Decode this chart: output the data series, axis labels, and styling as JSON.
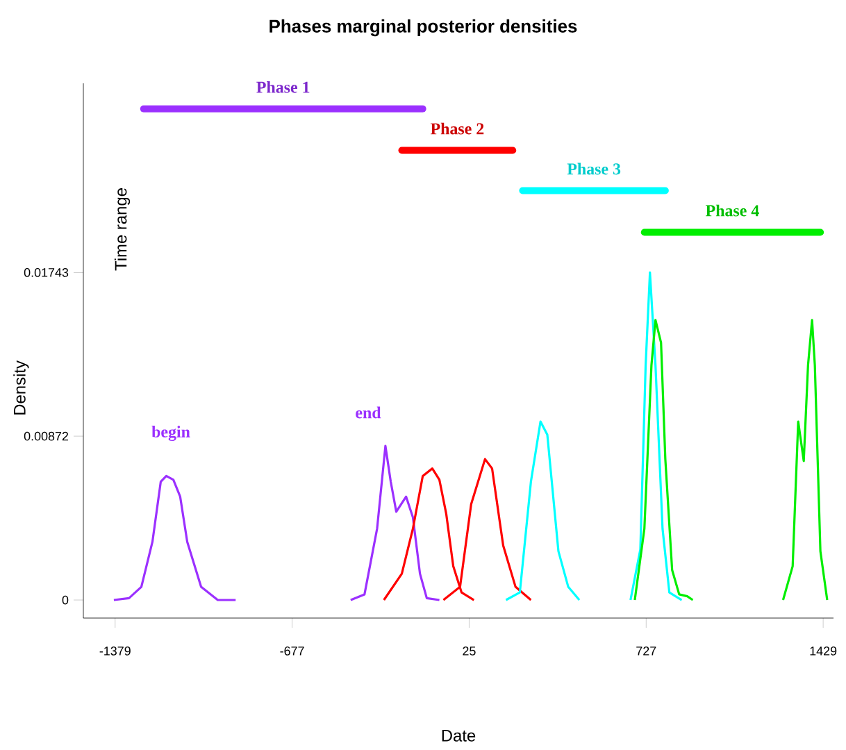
{
  "chart_data": {
    "type": "line",
    "title": "Phases marginal posterior densities",
    "xlabel": "Date",
    "ylabel": "Density",
    "xlim": [
      -1505,
      1470
    ],
    "ylim": [
      -0.00096,
      0.0275
    ],
    "xticks": [
      -1379,
      -677,
      25,
      727,
      1429
    ],
    "yticks": [
      0,
      0.00872,
      0.01743
    ],
    "annotations": [
      "Time range",
      "begin",
      "end"
    ],
    "series": [
      {
        "name": "Phase 1",
        "color": "#9b30ff",
        "x": [
          -1266,
          -159
        ],
        "values": [
          0.02614,
          0.02614
        ]
      },
      {
        "name": "Phase 2",
        "color": "#ff0000",
        "x": [
          -242,
          198
        ],
        "values": [
          0.02393,
          0.02393
        ]
      },
      {
        "name": "Phase 3",
        "color": "#00ffff",
        "x": [
          237,
          803
        ],
        "values": [
          0.02179,
          0.02179
        ]
      },
      {
        "name": "Phase 4",
        "color": "#00ee00",
        "x": [
          720,
          1418
        ],
        "values": [
          0.01957,
          0.01957
        ]
      },
      {
        "color": "#9b30ff",
        "x": [
          -1384,
          -1324,
          -1275,
          -1231,
          -1198,
          -1176,
          -1148,
          -1121,
          -1093,
          -1038,
          -972,
          -901
        ],
        "values": [
          0,
          0.0001,
          0.0007,
          0.0031,
          0.0063,
          0.0066,
          0.0064,
          0.0055,
          0.0031,
          0.0007,
          0,
          0
        ]
      },
      {
        "color": "#9b30ff",
        "x": [
          -445,
          -390,
          -340,
          -307,
          -286,
          -264,
          -225,
          -198,
          -170,
          -143,
          -93
        ],
        "values": [
          0,
          0.0003,
          0.0038,
          0.0082,
          0.0063,
          0.0047,
          0.0055,
          0.0044,
          0.0014,
          0.0001,
          0
        ]
      },
      {
        "color": "#ff0000",
        "x": [
          -313,
          -242,
          -198,
          -159,
          -121,
          -93,
          -66,
          -38,
          -5,
          44
        ],
        "values": [
          0,
          0.0014,
          0.0038,
          0.0066,
          0.007,
          0.0064,
          0.0046,
          0.0018,
          0.0004,
          0
        ]
      },
      {
        "color": "#ff0000",
        "x": [
          -77,
          -11,
          33,
          88,
          116,
          160,
          209,
          270
        ],
        "values": [
          0,
          0.0007,
          0.0051,
          0.0075,
          0.007,
          0.0029,
          0.0007,
          0
        ]
      },
      {
        "color": "#00ffff",
        "x": [
          171,
          226,
          270,
          308,
          335,
          379,
          418,
          462
        ],
        "values": [
          0,
          0.0004,
          0.0063,
          0.0095,
          0.0088,
          0.0026,
          0.0007,
          0
        ]
      },
      {
        "color": "#00ffff",
        "x": [
          665,
          704,
          725,
          742,
          764,
          792,
          819,
          868
        ],
        "values": [
          0,
          0.0027,
          0.0125,
          0.01743,
          0.0125,
          0.0038,
          0.0004,
          0
        ]
      },
      {
        "color": "#00ee00",
        "x": [
          682,
          720,
          748,
          764,
          786,
          803,
          830,
          858,
          890,
          912
        ],
        "values": [
          0,
          0.0038,
          0.0125,
          0.0149,
          0.0137,
          0.0075,
          0.0016,
          0.0003,
          0.0002,
          0
        ]
      },
      {
        "color": "#00ee00",
        "x": [
          1270,
          1308,
          1330,
          1352,
          1369,
          1385,
          1396,
          1418,
          1445
        ],
        "values": [
          0,
          0.0018,
          0.0095,
          0.0074,
          0.0125,
          0.0149,
          0.0125,
          0.0026,
          0
        ]
      }
    ]
  }
}
